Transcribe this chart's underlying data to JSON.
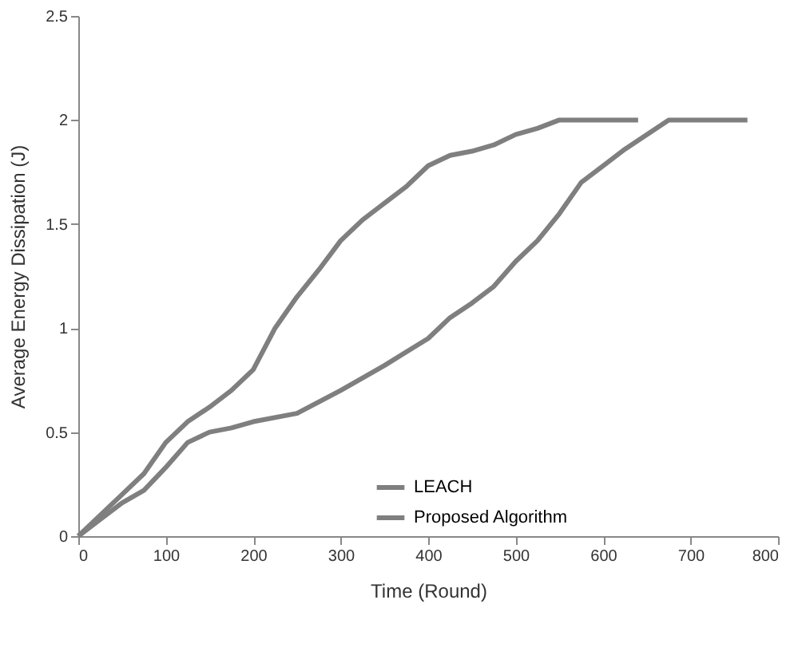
{
  "chart_data": {
    "type": "line",
    "xlabel": "Time (Round)",
    "ylabel": "Average Energy Dissipation (J)",
    "xlim": [
      0,
      800
    ],
    "xticks": [
      0,
      100,
      200,
      300,
      400,
      500,
      600,
      700,
      800
    ],
    "ylim": [
      0,
      2.5
    ],
    "yticks": [
      0,
      0.5,
      1,
      1.5,
      2,
      2.5
    ],
    "grid": false,
    "legend": "bottom",
    "marker": "none",
    "line_style": "solid",
    "series": [
      {
        "name": "LEACH",
        "color": "#7f7f7f",
        "x": [
          0,
          25,
          50,
          75,
          100,
          125,
          150,
          175,
          200,
          225,
          250,
          275,
          300,
          325,
          350,
          375,
          400,
          425,
          450,
          475,
          500,
          525,
          550,
          600,
          640
        ],
        "values": [
          0,
          0.1,
          0.2,
          0.3,
          0.45,
          0.55,
          0.62,
          0.7,
          0.8,
          1.0,
          1.15,
          1.28,
          1.42,
          1.52,
          1.6,
          1.68,
          1.78,
          1.83,
          1.85,
          1.88,
          1.93,
          1.96,
          2.0,
          2.0,
          2.0
        ]
      },
      {
        "name": "Proposed Algorithm",
        "color": "#7f7f7f",
        "x": [
          0,
          25,
          50,
          75,
          100,
          125,
          150,
          175,
          200,
          250,
          300,
          350,
          400,
          425,
          450,
          475,
          500,
          525,
          550,
          575,
          600,
          625,
          650,
          675,
          700,
          765
        ],
        "values": [
          0,
          0.08,
          0.16,
          0.22,
          0.33,
          0.45,
          0.5,
          0.52,
          0.55,
          0.59,
          0.7,
          0.82,
          0.95,
          1.05,
          1.12,
          1.2,
          1.32,
          1.42,
          1.55,
          1.7,
          1.78,
          1.86,
          1.93,
          2.0,
          2.0,
          2.0
        ]
      }
    ]
  }
}
